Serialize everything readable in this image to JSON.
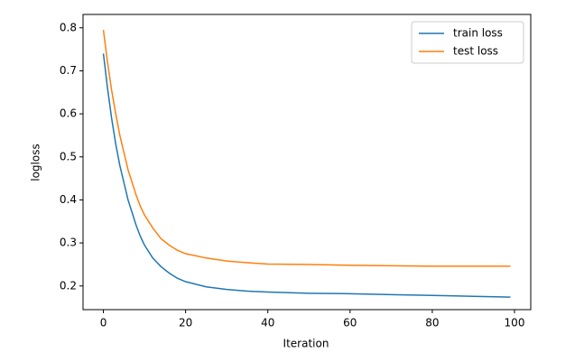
{
  "chart_data": {
    "type": "line",
    "x_label": "Iteration",
    "y_label": "logloss",
    "x": [
      0,
      1,
      2,
      3,
      4,
      5,
      6,
      7,
      8,
      9,
      10,
      12,
      14,
      16,
      18,
      20,
      25,
      30,
      35,
      40,
      50,
      60,
      70,
      80,
      90,
      99
    ],
    "series": [
      {
        "name": "train loss",
        "color": "#1f77b4",
        "values": [
          0.74,
          0.66,
          0.59,
          0.53,
          0.48,
          0.44,
          0.4,
          0.37,
          0.34,
          0.315,
          0.295,
          0.265,
          0.245,
          0.23,
          0.218,
          0.21,
          0.198,
          0.192,
          0.188,
          0.186,
          0.183,
          0.182,
          0.18,
          0.178,
          0.176,
          0.174
        ]
      },
      {
        "name": "test loss",
        "color": "#ff7f0e",
        "values": [
          0.795,
          0.72,
          0.655,
          0.6,
          0.55,
          0.51,
          0.47,
          0.44,
          0.41,
          0.385,
          0.365,
          0.335,
          0.31,
          0.295,
          0.283,
          0.275,
          0.265,
          0.258,
          0.254,
          0.251,
          0.25,
          0.248,
          0.247,
          0.246,
          0.246,
          0.246
        ]
      }
    ],
    "xlim": [
      -4.95,
      103.95
    ],
    "xticks": [
      0,
      20,
      40,
      60,
      80,
      100
    ],
    "ylim": [
      0.145,
      0.831
    ],
    "yticks": [
      {
        "value": 0.2,
        "label": "0.2"
      },
      {
        "value": 0.3,
        "label": "0.3"
      },
      {
        "value": 0.4,
        "label": "0.4"
      },
      {
        "value": 0.5,
        "label": "0.5"
      },
      {
        "value": 0.6,
        "label": "0.6"
      },
      {
        "value": 0.7,
        "label": "0.7"
      },
      {
        "value": 0.8,
        "label": "0.8"
      }
    ],
    "grid": false,
    "legend": "upper right"
  }
}
